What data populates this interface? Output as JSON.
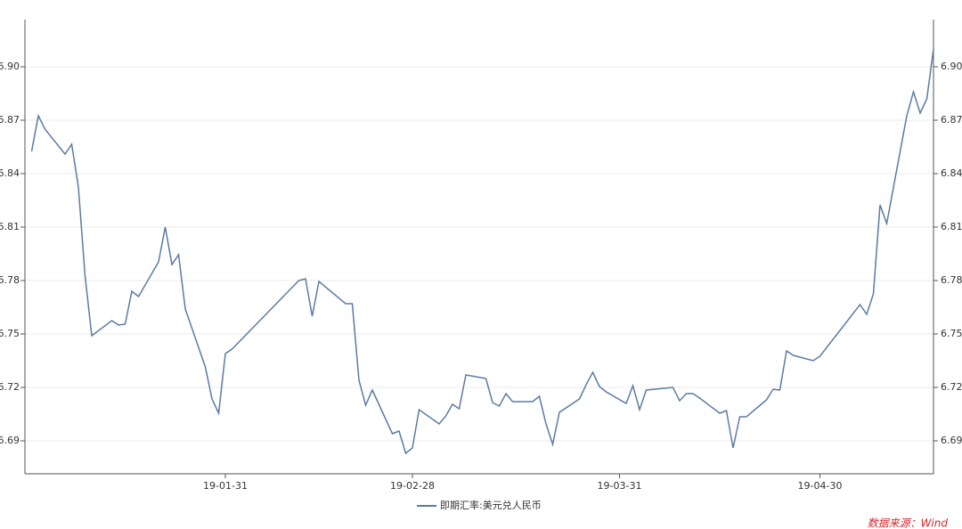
{
  "chart_data": {
    "type": "line",
    "x": [
      "2019-01-02",
      "2019-01-03",
      "2019-01-04",
      "2019-01-07",
      "2019-01-08",
      "2019-01-09",
      "2019-01-10",
      "2019-01-11",
      "2019-01-14",
      "2019-01-15",
      "2019-01-16",
      "2019-01-17",
      "2019-01-18",
      "2019-01-21",
      "2019-01-22",
      "2019-01-23",
      "2019-01-24",
      "2019-01-25",
      "2019-01-28",
      "2019-01-29",
      "2019-01-30",
      "2019-01-31",
      "2019-02-01",
      "2019-02-11",
      "2019-02-12",
      "2019-02-13",
      "2019-02-14",
      "2019-02-18",
      "2019-02-19",
      "2019-02-20",
      "2019-02-21",
      "2019-02-22",
      "2019-02-25",
      "2019-02-26",
      "2019-02-27",
      "2019-02-28",
      "2019-03-01",
      "2019-03-04",
      "2019-03-05",
      "2019-03-06",
      "2019-03-07",
      "2019-03-08",
      "2019-03-11",
      "2019-03-12",
      "2019-03-13",
      "2019-03-14",
      "2019-03-15",
      "2019-03-18",
      "2019-03-19",
      "2019-03-20",
      "2019-03-21",
      "2019-03-22",
      "2019-03-25",
      "2019-03-26",
      "2019-03-27",
      "2019-03-28",
      "2019-03-29",
      "2019-04-01",
      "2019-04-02",
      "2019-04-03",
      "2019-04-04",
      "2019-04-08",
      "2019-04-09",
      "2019-04-10",
      "2019-04-11",
      "2019-04-12",
      "2019-04-15",
      "2019-04-16",
      "2019-04-17",
      "2019-04-18",
      "2019-04-19",
      "2019-04-22",
      "2019-04-23",
      "2019-04-24",
      "2019-04-25",
      "2019-04-26",
      "2019-04-29",
      "2019-04-30",
      "2019-05-06",
      "2019-05-07",
      "2019-05-08",
      "2019-05-09",
      "2019-05-10",
      "2019-05-13",
      "2019-05-14",
      "2019-05-15",
      "2019-05-16",
      "2019-05-17"
    ],
    "series": [
      {
        "name": "即期汇率:美元兑人民币",
        "color": "#5b7ba3",
        "values": [
          6.8525,
          6.8725,
          6.865,
          6.851,
          6.8565,
          6.8325,
          6.7825,
          6.749,
          6.7575,
          6.755,
          6.7555,
          6.774,
          6.771,
          6.7905,
          6.81,
          6.789,
          6.7945,
          6.764,
          6.7315,
          6.7135,
          6.7055,
          6.739,
          6.7415,
          6.78,
          6.781,
          6.76,
          6.7795,
          6.767,
          6.767,
          6.724,
          6.71,
          6.7185,
          6.694,
          6.6955,
          6.683,
          6.686,
          6.7075,
          6.6995,
          6.704,
          6.7105,
          6.708,
          6.727,
          6.725,
          6.7115,
          6.7095,
          6.7165,
          6.712,
          6.712,
          6.715,
          6.6995,
          6.688,
          6.706,
          6.7135,
          6.7215,
          6.7285,
          6.7205,
          6.7175,
          6.711,
          6.721,
          6.7075,
          6.7185,
          6.72,
          6.7125,
          6.7165,
          6.7165,
          6.714,
          6.7055,
          6.707,
          6.686,
          6.7035,
          6.7035,
          6.713,
          6.719,
          6.7185,
          6.7405,
          6.738,
          6.735,
          6.7375,
          6.7665,
          6.761,
          6.7725,
          6.8225,
          6.812,
          6.8725,
          6.886,
          6.874,
          6.882,
          6.91
        ]
      }
    ],
    "xlim": [
      "2019-01-01",
      "2019-05-17"
    ],
    "xticks": [
      {
        "value": "2019-01-31",
        "label": "19-01-31"
      },
      {
        "value": "2019-02-28",
        "label": "19-02-28"
      },
      {
        "value": "2019-03-31",
        "label": "19-03-31"
      },
      {
        "value": "2019-04-30",
        "label": "19-04-30"
      }
    ],
    "ylim": [
      6.6715,
      6.9265
    ],
    "yticks": [
      {
        "value": 6.69,
        "label": "6.69"
      },
      {
        "value": 6.72,
        "label": "6.72"
      },
      {
        "value": 6.75,
        "label": "6.75"
      },
      {
        "value": 6.78,
        "label": "6.78"
      },
      {
        "value": 6.81,
        "label": "6.81"
      },
      {
        "value": 6.84,
        "label": "6.84"
      },
      {
        "value": 6.87,
        "label": "6.87"
      },
      {
        "value": 6.9,
        "label": "6.90"
      }
    ],
    "grid": true,
    "source": "数据来源：Wind"
  }
}
